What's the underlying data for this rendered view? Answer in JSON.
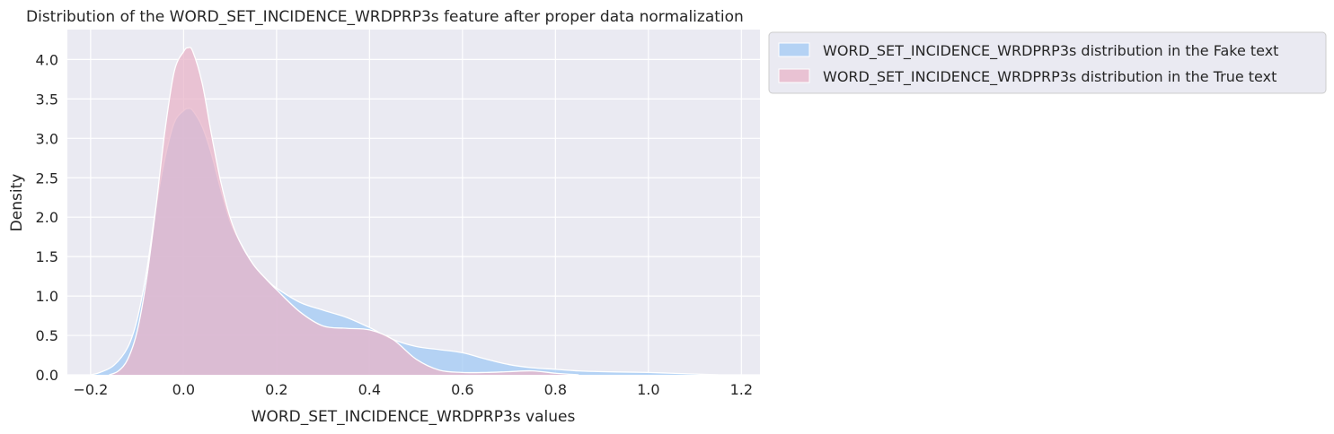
{
  "chart_data": {
    "type": "area",
    "title": "Distribution of the WORD_SET_INCIDENCE_WRDPRP3s feature after proper data normalization",
    "xlabel": "WORD_SET_INCIDENCE_WRDPRP3s values",
    "ylabel": "Density",
    "xlim": [
      -0.25,
      1.24
    ],
    "ylim": [
      0,
      4.38
    ],
    "xticks": [
      -0.2,
      0.0,
      0.2,
      0.4,
      0.6,
      0.8,
      1.0,
      1.2
    ],
    "xtick_labels": [
      "−0.2",
      "0.0",
      "0.2",
      "0.4",
      "0.6",
      "0.8",
      "1.0",
      "1.2"
    ],
    "yticks": [
      0.0,
      0.5,
      1.0,
      1.5,
      2.0,
      2.5,
      3.0,
      3.5,
      4.0
    ],
    "ytick_labels": [
      "0.0",
      "0.5",
      "1.0",
      "1.5",
      "2.0",
      "2.5",
      "3.0",
      "3.5",
      "4.0"
    ],
    "grid": true,
    "legend_position": "outside-top-right",
    "colors": {
      "background": "#eaeaf2",
      "grid": "#ffffff"
    },
    "series": [
      {
        "name": "WORD_SET_INCIDENCE_WRDPRP3s distribution in the Fake text",
        "color": "#a1c9f4",
        "x": [
          -0.2,
          -0.18,
          -0.15,
          -0.12,
          -0.1,
          -0.08,
          -0.06,
          -0.04,
          -0.02,
          0.0,
          0.01,
          0.02,
          0.04,
          0.06,
          0.08,
          0.1,
          0.12,
          0.15,
          0.18,
          0.2,
          0.25,
          0.3,
          0.35,
          0.4,
          0.45,
          0.5,
          0.55,
          0.6,
          0.65,
          0.7,
          0.75,
          0.8,
          0.85,
          0.9,
          0.95,
          1.0,
          1.05,
          1.1,
          1.15
        ],
        "y": [
          0.0,
          0.03,
          0.12,
          0.35,
          0.7,
          1.3,
          2.1,
          2.75,
          3.2,
          3.35,
          3.38,
          3.35,
          3.15,
          2.8,
          2.35,
          1.95,
          1.7,
          1.4,
          1.2,
          1.1,
          0.92,
          0.82,
          0.73,
          0.6,
          0.45,
          0.36,
          0.32,
          0.28,
          0.2,
          0.13,
          0.09,
          0.07,
          0.05,
          0.04,
          0.035,
          0.03,
          0.02,
          0.01,
          0.0
        ]
      },
      {
        "name": "WORD_SET_INCIDENCE_WRDPRP3s distribution in the True text",
        "color": "#e8b4c8",
        "x": [
          -0.16,
          -0.14,
          -0.12,
          -0.1,
          -0.08,
          -0.06,
          -0.04,
          -0.02,
          0.0,
          0.01,
          0.02,
          0.04,
          0.06,
          0.08,
          0.1,
          0.12,
          0.15,
          0.18,
          0.2,
          0.25,
          0.3,
          0.35,
          0.4,
          0.45,
          0.5,
          0.55,
          0.6,
          0.65,
          0.7,
          0.75,
          0.8,
          0.85
        ],
        "y": [
          0.0,
          0.05,
          0.2,
          0.55,
          1.2,
          2.1,
          3.1,
          3.85,
          4.1,
          4.15,
          4.1,
          3.7,
          3.05,
          2.45,
          2.0,
          1.7,
          1.4,
          1.2,
          1.08,
          0.8,
          0.62,
          0.59,
          0.57,
          0.45,
          0.2,
          0.06,
          0.03,
          0.03,
          0.04,
          0.05,
          0.02,
          0.0
        ]
      }
    ]
  }
}
